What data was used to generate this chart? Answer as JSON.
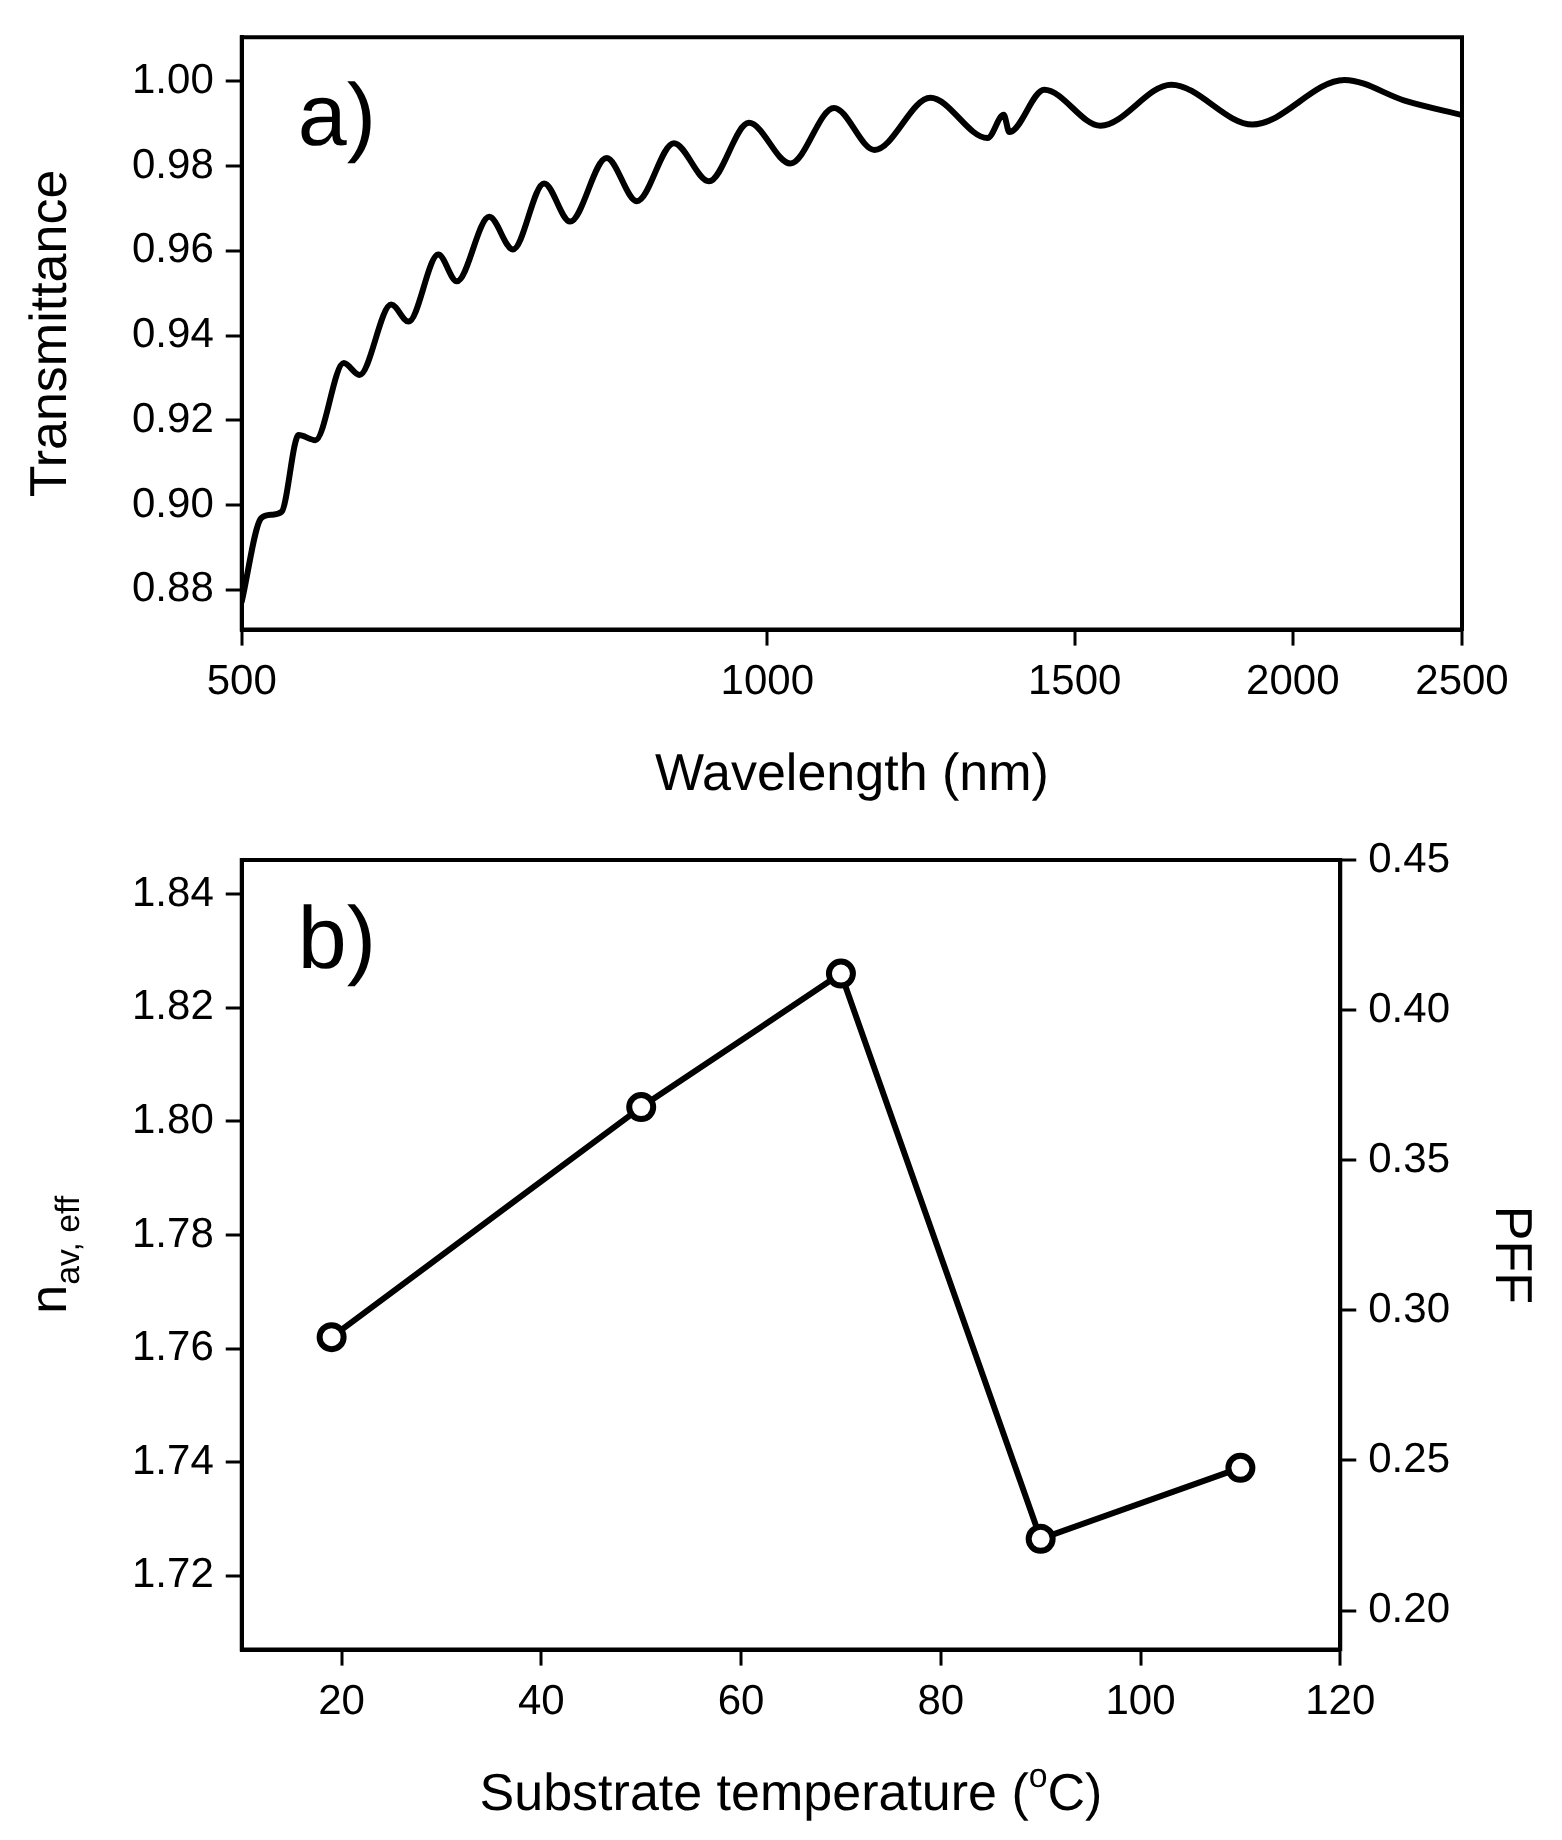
{
  "chart_data": [
    {
      "type": "line",
      "xlabel": "Wavelength (nm)",
      "ylabel": "Transmittance",
      "annotations": [
        "a)"
      ],
      "log": "x",
      "marker": "none",
      "line_style": "solid",
      "legend": false,
      "grid": false,
      "xlim": [
        500,
        2500
      ],
      "xticks": [
        500,
        1000,
        1500,
        2000,
        2500
      ],
      "ylim": [
        0.8706,
        1.0104
      ],
      "yticks": [
        0.88,
        {
          "value": 0.9,
          "label": "0.90"
        },
        0.92,
        0.94,
        0.96,
        0.98,
        {
          "value": 1,
          "label": "1.00"
        }
      ],
      "series": [
        {
          "color": "#000000",
          "x": [
            500,
            513,
            520,
            527,
            539,
            551,
            572,
            584,
            609,
            623,
            648,
            664,
            693,
            715,
            745,
            771,
            809,
            842,
            884,
            926,
            976,
            1031,
            1092,
            1152,
            1240,
            1337,
            1366,
            1376,
            1441,
            1552,
            1704,
            1897,
            2141,
            2323,
            2500
          ],
          "values": [
            0.8772,
            0.8969,
            0.8977,
            0.8984,
            0.9165,
            0.9153,
            0.9335,
            0.9307,
            0.9473,
            0.9433,
            0.9591,
            0.9528,
            0.968,
            0.9603,
            0.9759,
            0.9669,
            0.9819,
            0.9717,
            0.9854,
            0.9764,
            0.9902,
            0.9806,
            0.9937,
            0.9838,
            0.9961,
            0.9866,
            0.9921,
            0.988,
            0.998,
            0.9895,
            0.9992,
            0.9898,
            1.0003,
            0.9953,
            0.992
          ]
        }
      ]
    },
    {
      "type": "line",
      "xlabel": "Substrate temperature ($^{o}$C)",
      "ylabel": "n$_{av, eff}$",
      "y2label": "PFF",
      "annotations": [
        "b)"
      ],
      "marker": "circle",
      "line_style": "solid",
      "legend": false,
      "grid": false,
      "xlim": [
        10,
        120
      ],
      "xticks": [
        20,
        40,
        60,
        80,
        100,
        120
      ],
      "ylim": [
        1.707,
        1.846
      ],
      "yticks": [
        1.72,
        1.74,
        1.76,
        1.78,
        {
          "value": 1.8,
          "label": "1.80"
        },
        1.82,
        1.84
      ],
      "y2lim": [
        0.187,
        0.45
      ],
      "y2ticks": [
        {
          "value": 0.2,
          "label": "0.20"
        },
        0.25,
        {
          "value": 0.3,
          "label": "0.30"
        },
        0.35,
        {
          "value": 0.4,
          "label": "0.40"
        },
        0.45
      ],
      "series": [
        {
          "color": "#000000",
          "x": [
            19,
            50,
            70,
            90,
            110
          ],
          "values": [
            1.762,
            1.8025,
            1.826,
            1.7265,
            1.739
          ]
        }
      ]
    }
  ]
}
